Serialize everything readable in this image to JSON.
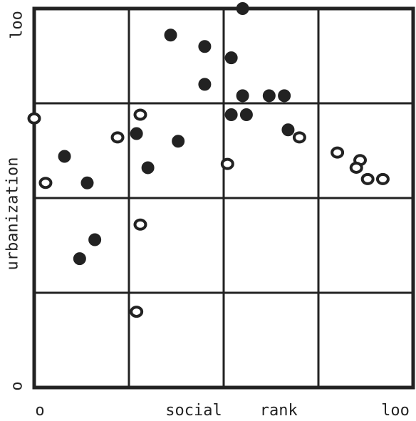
{
  "chart_data": {
    "type": "scatter",
    "title": "",
    "xlabel": "social    rank",
    "ylabel": "urbanization",
    "xlim": [
      0,
      100
    ],
    "ylim": [
      0,
      100
    ],
    "x_tick_labels": [
      "o",
      "loo"
    ],
    "y_tick_labels": [
      "o",
      "loo"
    ],
    "grid": true,
    "grid_divisions": 4,
    "ink_color": "#222222",
    "series": [
      {
        "marker": "filled-circle",
        "points": [
          {
            "x": 36,
            "y": 93
          },
          {
            "x": 45,
            "y": 90
          },
          {
            "x": 52,
            "y": 87
          },
          {
            "x": 55,
            "y": 100
          },
          {
            "x": 45,
            "y": 80
          },
          {
            "x": 55,
            "y": 77
          },
          {
            "x": 62,
            "y": 77
          },
          {
            "x": 66,
            "y": 77
          },
          {
            "x": 52,
            "y": 72
          },
          {
            "x": 56,
            "y": 72
          },
          {
            "x": 67,
            "y": 68
          },
          {
            "x": 27,
            "y": 67
          },
          {
            "x": 38,
            "y": 65
          },
          {
            "x": 8,
            "y": 61
          },
          {
            "x": 30,
            "y": 58
          },
          {
            "x": 14,
            "y": 54
          },
          {
            "x": 16,
            "y": 39
          },
          {
            "x": 12,
            "y": 34
          }
        ]
      },
      {
        "marker": "open-circle",
        "points": [
          {
            "x": 0,
            "y": 71
          },
          {
            "x": 28,
            "y": 72
          },
          {
            "x": 22,
            "y": 66
          },
          {
            "x": 70,
            "y": 66
          },
          {
            "x": 80,
            "y": 62
          },
          {
            "x": 51,
            "y": 59
          },
          {
            "x": 86,
            "y": 60
          },
          {
            "x": 85,
            "y": 58
          },
          {
            "x": 88,
            "y": 55
          },
          {
            "x": 92,
            "y": 55
          },
          {
            "x": 3,
            "y": 54
          },
          {
            "x": 28,
            "y": 43
          },
          {
            "x": 27,
            "y": 20
          }
        ]
      }
    ]
  }
}
